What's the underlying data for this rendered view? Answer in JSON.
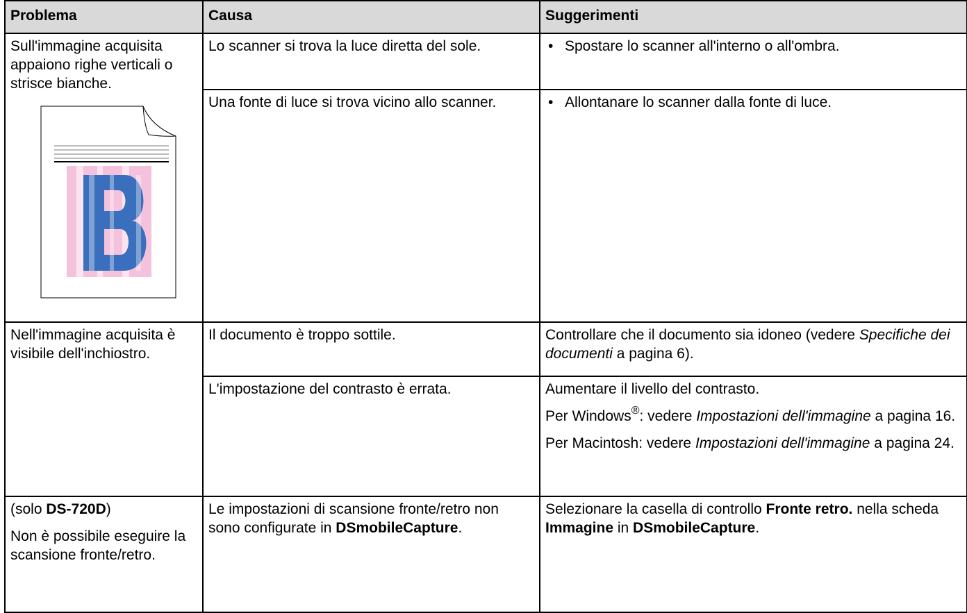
{
  "table": {
    "headers": [
      "Problema",
      "Causa",
      "Suggerimenti"
    ],
    "rows": [
      {
        "problem": [
          [
            "Sull'immagine acquisita appaiono righe verticali o strisce bianche."
          ]
        ],
        "causes": [
          {
            "cause": [
              "Lo scanner si trova  la luce diretta del sole."
            ],
            "suggestions": [
              [
                "Spostare lo scanner all'interno o all'ombra."
              ]
            ]
          },
          {
            "cause": [
              "Una fonte di luce si trova vicino allo scanner."
            ],
            "suggestions": [
              [
                "Allontanare lo scanner dalla fonte di luce."
              ]
            ]
          }
        ]
      },
      {
        "problem": [
          [
            "Nell'immagine acquisita è visibile dell'inchiostro."
          ]
        ],
        "causes": [
          {
            "cause": [
              "Il documento è troppo sottile."
            ],
            "suggestions": [
              [
                "Controllare che il documento sia idoneo (vedere ",
                "Specifiche dei documenti",
                " a pagina 6)."
              ]
            ]
          },
          {
            "cause": [
              "L'impostazione del contrasto è errata."
            ],
            "suggestions": [
              [
                "Aumentare il livello del contrasto."
              ],
              [
                "Per Windows",
                "®",
                ": vedere ",
                "Impostazioni dell'immagine",
                " a pagina 16."
              ],
              [
                "Per Macintosh: vedere ",
                "Impostazioni dell'immagine",
                " a pagina 24."
              ]
            ]
          }
        ]
      },
      {
        "problem": [
          [
            "(solo ",
            "DS-720D",
            ")"
          ],
          [
            "Non è possibile eseguire la scansione fronte/retro."
          ]
        ],
        "causes": [
          {
            "cause": [
              "Le impostazioni di scansione fronte/retro non sono configurate in ",
              "DSmobileCapture",
              "."
            ],
            "suggestions": [
              [
                "Selezionare la casella di controllo ",
                "Fronte retro.",
                " nella scheda ",
                "Immagine",
                " in ",
                "DSmobileCapture",
                "."
              ]
            ]
          }
        ]
      }
    ]
  }
}
